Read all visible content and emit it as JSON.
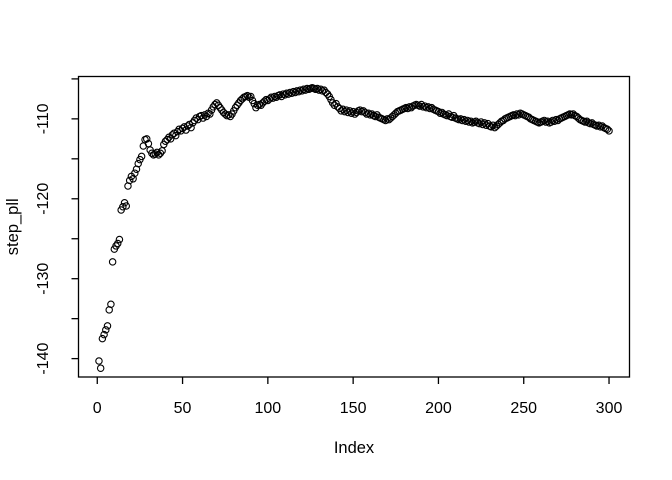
{
  "figure": {
    "background_color": "#ffffff",
    "foreground_color": "#000000"
  },
  "chart_data": {
    "type": "scatter",
    "title": "",
    "xlabel": "Index",
    "ylabel": "step_pll",
    "marker": "open-circle",
    "marker_color": "#000000",
    "grid": false,
    "legend": null,
    "xlim": [
      -11,
      312
    ],
    "ylim": [
      -142.3,
      -104.7
    ],
    "x_ticks": [
      0,
      50,
      100,
      150,
      200,
      250,
      300
    ],
    "x_tick_labels": [
      "0",
      "50",
      "100",
      "150",
      "200",
      "250",
      "300"
    ],
    "y_ticks_labeled": [
      -140,
      -130,
      -120,
      -110
    ],
    "y_tick_labels": [
      "-140",
      "-130",
      "-120",
      "-110"
    ],
    "y_ticks_minor": [
      -135,
      -125,
      -115,
      -105
    ],
    "x_start": 1,
    "x": [
      1,
      2,
      3,
      4,
      5,
      6,
      7,
      8,
      9,
      10,
      11,
      12,
      13,
      14,
      15,
      16,
      17,
      18,
      19,
      20,
      21,
      22,
      23,
      24,
      25,
      26,
      27,
      28,
      29,
      30,
      31,
      32,
      33,
      34,
      35,
      36,
      37,
      38,
      39,
      40,
      41,
      42,
      43,
      44,
      45,
      46,
      47,
      48,
      49,
      50,
      51,
      52,
      53,
      54,
      55,
      56,
      57,
      58,
      59,
      60,
      61,
      62,
      63,
      64,
      65,
      66,
      67,
      68,
      69,
      70,
      71,
      72,
      73,
      74,
      75,
      76,
      77,
      78,
      79,
      80,
      81,
      82,
      83,
      84,
      85,
      86,
      87,
      88,
      89,
      90,
      91,
      92,
      93,
      94,
      95,
      96,
      97,
      98,
      99,
      100,
      101,
      102,
      103,
      104,
      105,
      106,
      107,
      108,
      109,
      110,
      111,
      112,
      113,
      114,
      115,
      116,
      117,
      118,
      119,
      120,
      121,
      122,
      123,
      124,
      125,
      126,
      127,
      128,
      129,
      130,
      131,
      132,
      133,
      134,
      135,
      136,
      137,
      138,
      139,
      140,
      141,
      142,
      143,
      144,
      145,
      146,
      147,
      148,
      149,
      150,
      151,
      152,
      153,
      154,
      155,
      156,
      157,
      158,
      159,
      160,
      161,
      162,
      163,
      164,
      165,
      166,
      167,
      168,
      169,
      170,
      171,
      172,
      173,
      174,
      175,
      176,
      177,
      178,
      179,
      180,
      181,
      182,
      183,
      184,
      185,
      186,
      187,
      188,
      189,
      190,
      191,
      192,
      193,
      194,
      195,
      196,
      197,
      198,
      199,
      200,
      201,
      202,
      203,
      204,
      205,
      206,
      207,
      208,
      209,
      210,
      211,
      212,
      213,
      214,
      215,
      216,
      217,
      218,
      219,
      220,
      221,
      222,
      223,
      224,
      225,
      226,
      227,
      228,
      229,
      230,
      231,
      232,
      233,
      234,
      235,
      236,
      237,
      238,
      239,
      240,
      241,
      242,
      243,
      244,
      245,
      246,
      247,
      248,
      249,
      250,
      251,
      252,
      253,
      254,
      255,
      256,
      257,
      258,
      259,
      260,
      261,
      262,
      263,
      264,
      265,
      266,
      267,
      268,
      269,
      270,
      271,
      272,
      273,
      274,
      275,
      276,
      277,
      278,
      279,
      280,
      281,
      282,
      283,
      284,
      285,
      286,
      287,
      288,
      289,
      290,
      291,
      292,
      293,
      294,
      295,
      296,
      297,
      298,
      299,
      300
    ],
    "y": [
      -140.3,
      -141.2,
      -137.5,
      -137.0,
      -136.4,
      -135.9,
      -133.9,
      -133.2,
      -127.9,
      -126.3,
      -125.9,
      -125.6,
      -125.1,
      -121.4,
      -121.0,
      -120.5,
      -120.9,
      -118.4,
      -117.7,
      -117.2,
      -117.5,
      -116.8,
      -116.3,
      -115.6,
      -115.1,
      -114.7,
      -113.4,
      -112.6,
      -112.5,
      -113.1,
      -113.9,
      -114.3,
      -114.5,
      -114.4,
      -114.2,
      -114.5,
      -114.3,
      -114.0,
      -113.2,
      -112.8,
      -112.6,
      -112.3,
      -112.5,
      -112.0,
      -111.8,
      -112.1,
      -111.6,
      -111.3,
      -111.5,
      -111.2,
      -111.0,
      -111.4,
      -110.9,
      -110.7,
      -111.1,
      -110.5,
      -110.2,
      -109.9,
      -110.1,
      -109.7,
      -109.6,
      -109.9,
      -109.5,
      -109.7,
      -109.3,
      -109.4,
      -108.9,
      -108.5,
      -108.2,
      -108.0,
      -108.3,
      -108.6,
      -108.9,
      -109.2,
      -109.4,
      -109.6,
      -109.5,
      -109.7,
      -109.4,
      -109.0,
      -108.6,
      -108.3,
      -108.0,
      -107.7,
      -107.5,
      -107.3,
      -107.2,
      -107.1,
      -107.3,
      -107.2,
      -107.7,
      -108.1,
      -108.6,
      -108.3,
      -108.2,
      -108.3,
      -108.0,
      -107.8,
      -107.6,
      -107.7,
      -107.5,
      -107.3,
      -107.4,
      -107.2,
      -107.3,
      -107.1,
      -107.0,
      -107.2,
      -106.9,
      -107.0,
      -106.8,
      -106.9,
      -106.7,
      -106.8,
      -106.6,
      -106.7,
      -106.5,
      -106.6,
      -106.4,
      -106.5,
      -106.3,
      -106.4,
      -106.2,
      -106.3,
      -106.2,
      -106.1,
      -106.2,
      -106.3,
      -106.2,
      -106.4,
      -106.3,
      -106.5,
      -106.4,
      -106.7,
      -106.9,
      -107.2,
      -107.6,
      -108.0,
      -108.3,
      -108.1,
      -108.5,
      -108.7,
      -109.0,
      -108.8,
      -109.1,
      -108.9,
      -109.2,
      -109.0,
      -109.3,
      -109.1,
      -109.4,
      -109.2,
      -109.0,
      -108.9,
      -109.1,
      -109.0,
      -109.2,
      -109.4,
      -109.3,
      -109.5,
      -109.4,
      -109.6,
      -109.7,
      -109.5,
      -109.8,
      -109.9,
      -110.0,
      -110.1,
      -110.2,
      -110.0,
      -110.1,
      -109.9,
      -109.7,
      -109.5,
      -109.3,
      -109.1,
      -109.0,
      -108.9,
      -108.8,
      -108.7,
      -108.6,
      -108.7,
      -108.5,
      -108.6,
      -108.4,
      -108.3,
      -108.2,
      -108.3,
      -108.4,
      -108.2,
      -108.5,
      -108.4,
      -108.6,
      -108.5,
      -108.7,
      -108.6,
      -108.8,
      -108.9,
      -109.0,
      -109.1,
      -109.3,
      -109.2,
      -109.4,
      -109.5,
      -109.6,
      -109.4,
      -109.7,
      -109.8,
      -109.6,
      -109.9,
      -110.0,
      -110.1,
      -110.0,
      -110.2,
      -110.1,
      -110.3,
      -110.2,
      -110.4,
      -110.3,
      -110.5,
      -110.4,
      -110.3,
      -110.5,
      -110.6,
      -110.4,
      -110.7,
      -110.5,
      -110.8,
      -110.6,
      -110.9,
      -111.0,
      -110.8,
      -111.1,
      -110.9,
      -110.7,
      -110.5,
      -110.3,
      -110.2,
      -110.0,
      -109.9,
      -109.8,
      -109.7,
      -109.6,
      -109.5,
      -109.6,
      -109.4,
      -109.5,
      -109.3,
      -109.4,
      -109.5,
      -109.6,
      -109.7,
      -109.8,
      -110.0,
      -110.1,
      -110.2,
      -110.3,
      -110.4,
      -110.5,
      -110.4,
      -110.3,
      -110.2,
      -110.4,
      -110.3,
      -110.5,
      -110.4,
      -110.2,
      -110.3,
      -110.1,
      -110.2,
      -110.0,
      -109.9,
      -109.8,
      -109.7,
      -109.6,
      -109.5,
      -109.4,
      -109.5,
      -109.4,
      -109.6,
      -109.7,
      -109.9,
      -110.1,
      -110.2,
      -110.3,
      -110.4,
      -110.3,
      -110.5,
      -110.6,
      -110.5,
      -110.7,
      -110.8,
      -110.9,
      -110.8,
      -111.0,
      -110.9,
      -111.1,
      -111.2,
      -111.3,
      -111.5
    ]
  }
}
